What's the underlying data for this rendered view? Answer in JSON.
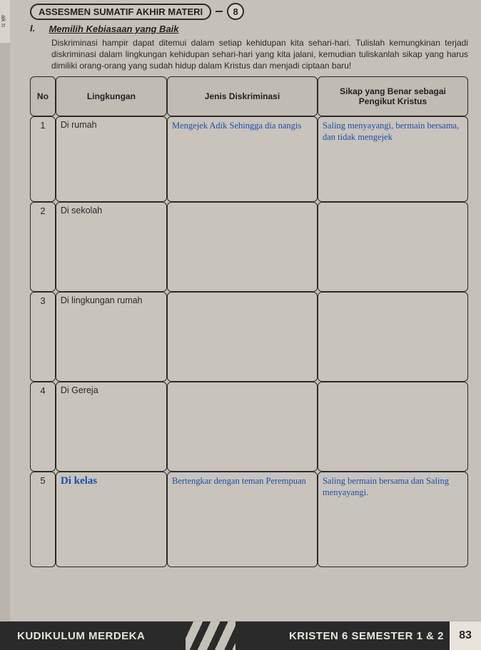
{
  "leftTab": "ak n",
  "header": {
    "pill": "ASSESMEN SUMATIF AKHIR MATERI",
    "number": "8"
  },
  "section": {
    "num": "I.",
    "title": "Memilih Kebiasaan yang Baik",
    "instructions": "Diskriminasi hampir dapat ditemui dalam setiap kehidupan kita sehari-hari. Tulislah kemungkinan terjadi diskriminasi dalam lingkungan kehidupan sehari-hari yang kita jalani, kemudian tuliskanlah sikap yang harus dimiliki orang-orang yang sudah hidup dalam Kristus dan menjadi ciptaan baru!"
  },
  "table": {
    "headers": {
      "no": "No",
      "lingkungan": "Lingkungan",
      "jenis": "Jenis Diskriminasi",
      "sikap": "Sikap yang Benar sebagai Pengikut Kristus"
    },
    "rows": [
      {
        "no": "1",
        "env": "Di rumah",
        "envHand": false,
        "jenis": "Mengejek Adik Sehingga dia nangis",
        "sikap": "Saling menyayangi, bermain bersama, dan tidak mengejek"
      },
      {
        "no": "2",
        "env": "Di sekolah",
        "envHand": false,
        "jenis": "",
        "sikap": ""
      },
      {
        "no": "3",
        "env": "Di lingkungan rumah",
        "envHand": false,
        "jenis": "",
        "sikap": ""
      },
      {
        "no": "4",
        "env": "Di Gereja",
        "envHand": false,
        "jenis": "",
        "sikap": ""
      },
      {
        "no": "5",
        "env": "Di kelas",
        "envHand": true,
        "jenis": "Bertengkar dengan teman Perempuan",
        "sikap": "Saling bermain bersama dan Saling menyayangi."
      }
    ]
  },
  "footer": {
    "left": "KUDIKULUM MERDEKA",
    "right": "KRISTEN 6 SEMESTER 1 & 2",
    "page": "83"
  },
  "colors": {
    "pageBg": "#c5c0b8",
    "border": "#2a2a2a",
    "handwriting": "#1a4fb3",
    "footerBg": "#2a2a2a",
    "footerText": "#e8e4dc"
  }
}
